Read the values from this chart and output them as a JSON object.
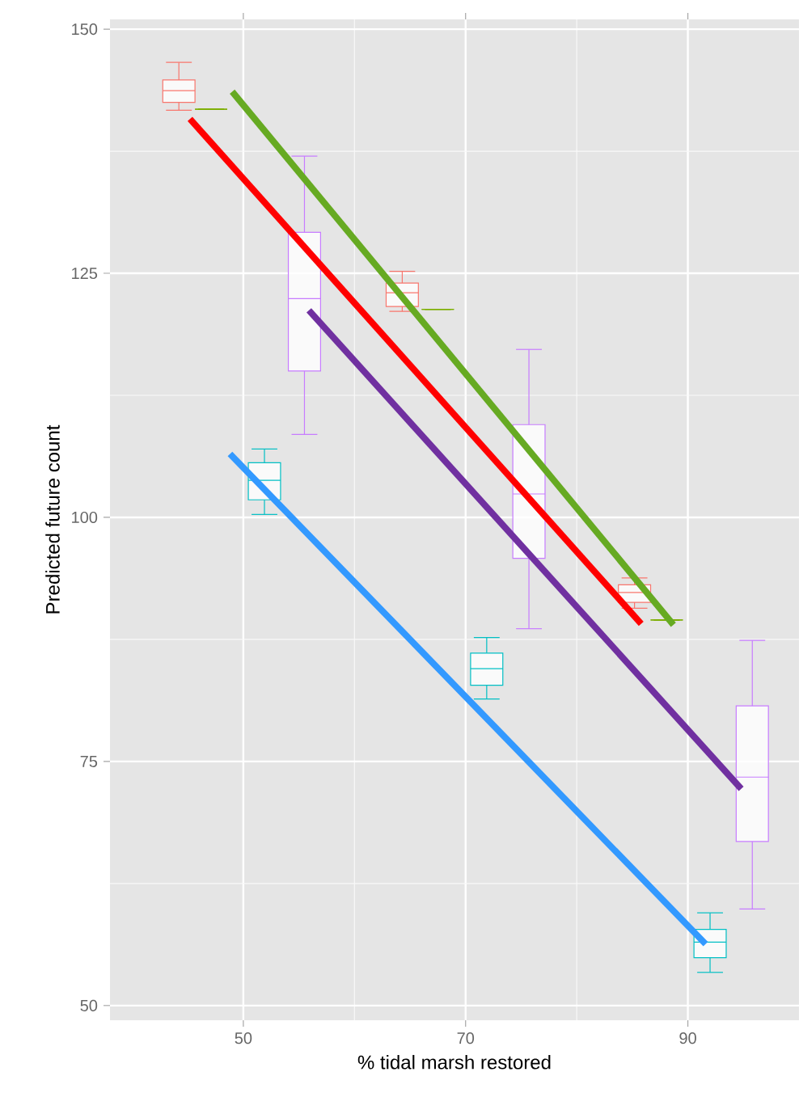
{
  "chart_data": {
    "type": "box",
    "xlabel": "% tidal marsh restored",
    "ylabel": "Predicted future count",
    "xlim": [
      38,
      100
    ],
    "ylim": [
      48.5,
      151
    ],
    "xticks": [
      50,
      70,
      90
    ],
    "yticks": [
      50,
      75,
      100,
      125,
      150
    ],
    "grid": true,
    "series": [
      {
        "color": "#f8766d",
        "x": [
          44.2,
          64.3,
          85.2
        ],
        "boxes": [
          {
            "low": 141.7,
            "q1": 142.5,
            "median": 143.7,
            "q3": 144.8,
            "high": 146.6
          },
          {
            "low": 121.1,
            "q1": 121.6,
            "median": 123,
            "q3": 124,
            "high": 125.2
          },
          {
            "low": 90.7,
            "q1": 91.3,
            "median": 92.3,
            "q3": 93.1,
            "high": 93.8
          }
        ]
      },
      {
        "color": "#7cae00",
        "x": [
          47.1,
          67.5,
          88.1
        ],
        "boxes": [
          {
            "low": 141.8,
            "q1": 141.8,
            "median": 141.8,
            "q3": 141.8,
            "high": 141.8
          },
          {
            "low": 121.3,
            "q1": 121.3,
            "median": 121.3,
            "q3": 121.3,
            "high": 121.3
          },
          {
            "low": 89.5,
            "q1": 89.5,
            "median": 89.5,
            "q3": 89.5,
            "high": 89.5
          }
        ]
      },
      {
        "color": "#00bfc4",
        "x": [
          51.9,
          71.9,
          92
        ],
        "boxes": [
          {
            "low": 100.3,
            "q1": 101.8,
            "median": 103.8,
            "q3": 105.6,
            "high": 107
          },
          {
            "low": 81.4,
            "q1": 82.8,
            "median": 84.5,
            "q3": 86.1,
            "high": 87.7
          },
          {
            "low": 53.4,
            "q1": 54.9,
            "median": 56.5,
            "q3": 57.8,
            "high": 59.5
          }
        ]
      },
      {
        "color": "#c77cff",
        "x": [
          55.5,
          75.7,
          95.8
        ],
        "boxes": [
          {
            "low": 108.5,
            "q1": 115,
            "median": 122.4,
            "q3": 129.2,
            "high": 137
          },
          {
            "low": 88.6,
            "q1": 95.8,
            "median": 102.4,
            "q3": 109.5,
            "high": 117.2
          },
          {
            "low": 59.9,
            "q1": 66.8,
            "median": 73.4,
            "q3": 80.7,
            "high": 87.4
          }
        ]
      },
      {
        "type": "line",
        "color": "#ff0000",
        "x": [
          45.2,
          85.8
        ],
        "values": [
          140.8,
          89.1
        ]
      },
      {
        "type": "line",
        "color": "#66aa22",
        "x": [
          49,
          88.7
        ],
        "values": [
          143.6,
          89
        ]
      },
      {
        "type": "line",
        "color": "#7030a0",
        "x": [
          55.9,
          94.8
        ],
        "values": [
          121.2,
          72.2
        ]
      },
      {
        "type": "line",
        "color": "#3399ff",
        "x": [
          48.8,
          91.6
        ],
        "values": [
          106.5,
          56.3
        ]
      }
    ]
  }
}
